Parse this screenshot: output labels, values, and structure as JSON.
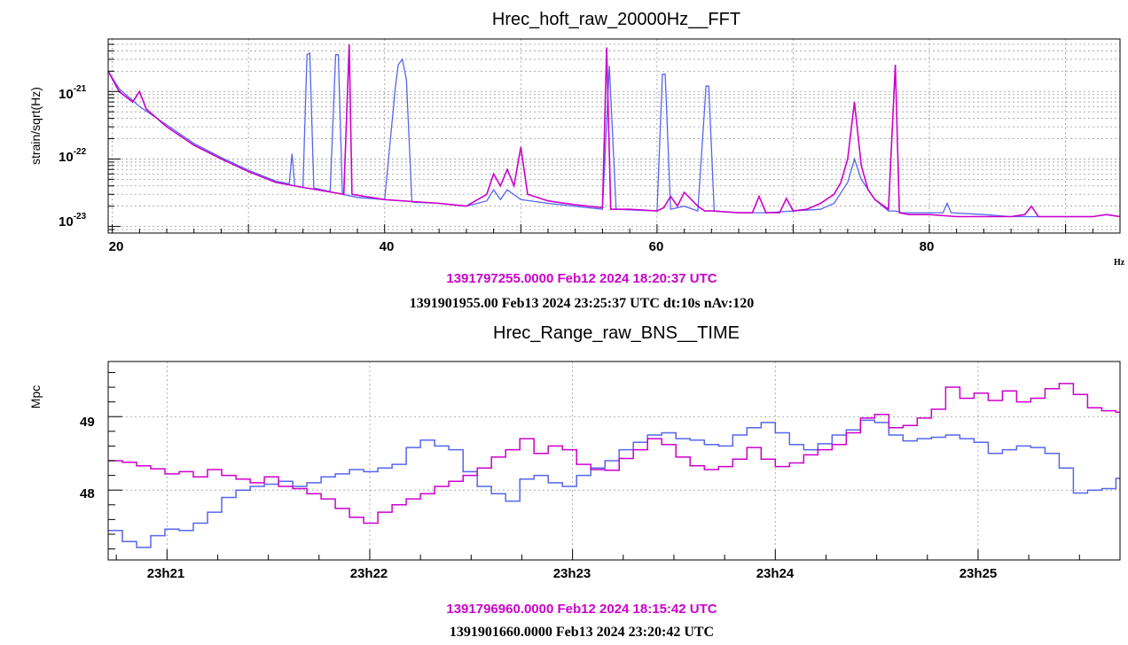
{
  "colors": {
    "magenta": "#cc00cc",
    "blue": "#5566ee",
    "frame": "#000000"
  },
  "chart_data": [
    {
      "type": "line",
      "title": "Hrec_hoft_raw_20000Hz__FFT",
      "xlabel": "Hz",
      "ylabel": "strain/sqrt(Hz)",
      "x_tick_labels": [
        "20",
        "40",
        "60",
        "80"
      ],
      "y_tick_labels": [
        "10-21",
        "10-22",
        "10-23"
      ],
      "y_scale": "log",
      "xlim": [
        19.7,
        94
      ],
      "ylim": [
        8e-24,
        6e-21
      ],
      "grid": true,
      "series": [
        {
          "name": "1391797255.0000 Feb12 2024 18:20:37 UTC",
          "color": "#cc00cc",
          "x": [
            19.7,
            20.5,
            21.5,
            22,
            22.5,
            24,
            26,
            28,
            30,
            32,
            34,
            37,
            37.4,
            37.6,
            40,
            44,
            46,
            47.5,
            48,
            48.5,
            49,
            49.5,
            50,
            50.5,
            52,
            54,
            56,
            56.3,
            56.6,
            58,
            60,
            60.5,
            61,
            61.5,
            62,
            63,
            63.5,
            64,
            66,
            67,
            67.5,
            68,
            69,
            69.5,
            70,
            71,
            72,
            73,
            73.5,
            74,
            74.5,
            75,
            75.5,
            76,
            77,
            77.5,
            77.8,
            78.5,
            80,
            82,
            84,
            86,
            87,
            87.5,
            88,
            90,
            92,
            93,
            94
          ],
          "values": [
            2e-21,
            1e-21,
            7e-22,
            1e-21,
            5.5e-22,
            3e-22,
            1.6e-22,
            1e-22,
            6.5e-23,
            4.5e-23,
            3.8e-23,
            3e-23,
            5e-21,
            3e-23,
            2.5e-23,
            2.2e-23,
            2e-23,
            3e-23,
            6e-23,
            4e-23,
            7e-23,
            4e-23,
            1.5e-22,
            3e-23,
            2.4e-23,
            2.1e-23,
            1.9e-23,
            4.5e-21,
            1.8e-23,
            1.8e-23,
            1.7e-23,
            1.9e-23,
            2.8e-23,
            2e-23,
            3.2e-23,
            2e-23,
            1.7e-23,
            1.7e-23,
            1.6e-23,
            1.6e-23,
            2.8e-23,
            1.6e-23,
            1.6e-23,
            2.6e-23,
            1.7e-23,
            1.8e-23,
            2.2e-23,
            3e-23,
            4.5e-23,
            1e-22,
            7e-22,
            8e-23,
            3.5e-23,
            2.5e-23,
            1.8e-23,
            2.5e-21,
            1.6e-23,
            1.5e-23,
            1.5e-23,
            1.4e-23,
            1.4e-23,
            1.4e-23,
            1.5e-23,
            2e-23,
            1.4e-23,
            1.4e-23,
            1.4e-23,
            1.5e-23,
            1.4e-23
          ]
        },
        {
          "name": "1391901955.00 Feb13 2024 23:25:37 UTC dt:10s nAv:120",
          "color": "#5566ee",
          "x": [
            19.7,
            20.5,
            22,
            24,
            26,
            28,
            30,
            32,
            33,
            33.2,
            33.4,
            34,
            34.3,
            34.5,
            34.8,
            36,
            36.4,
            36.6,
            36.9,
            38,
            40,
            40.8,
            41,
            41.3,
            41.6,
            42,
            44,
            46,
            47.5,
            48,
            48.5,
            49,
            50,
            52,
            56,
            56.5,
            57,
            60,
            60.4,
            60.6,
            61,
            62,
            63,
            63.6,
            63.8,
            64.2,
            66,
            68,
            70,
            72,
            73,
            74,
            74.5,
            75,
            76,
            77,
            77.5,
            78,
            80,
            81,
            81.3,
            81.6,
            84,
            86,
            88,
            90,
            92,
            93,
            94
          ],
          "values": [
            2e-21,
            1.1e-21,
            6e-22,
            3.2e-22,
            1.7e-22,
            1.05e-22,
            6.8e-23,
            4.7e-23,
            4.3e-23,
            1.2e-22,
            4e-23,
            3.8e-23,
            3.5e-21,
            3.7e-21,
            3.7e-23,
            3.3e-23,
            3.5e-21,
            3.5e-21,
            3e-23,
            2.7e-23,
            2.5e-23,
            1.2e-21,
            2.5e-21,
            3e-21,
            1.5e-21,
            2.3e-23,
            2.2e-23,
            2e-23,
            2.4e-23,
            3.5e-23,
            2.5e-23,
            3.5e-23,
            2.5e-23,
            2.2e-23,
            1.8e-23,
            2.4e-21,
            1.8e-23,
            1.7e-23,
            1.8e-21,
            1.8e-21,
            1.8e-23,
            2e-23,
            1.7e-23,
            1.2e-21,
            1.2e-21,
            1.7e-23,
            1.6e-23,
            1.6e-23,
            1.7e-23,
            1.8e-23,
            2.2e-23,
            4.5e-23,
            1e-22,
            5e-23,
            2.5e-23,
            1.7e-23,
            1.7e-23,
            1.6e-23,
            1.6e-23,
            1.6e-23,
            2.2e-23,
            1.6e-23,
            1.5e-23,
            1.4e-23,
            1.4e-23,
            1.4e-23,
            1.4e-23,
            1.5e-23,
            1.4e-23
          ]
        }
      ]
    },
    {
      "type": "line",
      "title": "Hrec_Range_raw_BNS__TIME",
      "xlabel": "",
      "ylabel": "Mpc",
      "x_tick_labels": [
        "23h21",
        "23h22",
        "23h23",
        "23h24",
        "23h25"
      ],
      "y_tick_labels": [
        "48",
        "49"
      ],
      "xlim": [
        20.71,
        25.7
      ],
      "ylim": [
        47.05,
        49.75
      ],
      "grid": true,
      "series": [
        {
          "name": "1391796960.0000 Feb12 2024 18:15:42 UTC",
          "color": "#cc00cc",
          "x": [
            20.71,
            20.78,
            20.85,
            20.92,
            20.99,
            21.06,
            21.13,
            21.2,
            21.27,
            21.34,
            21.41,
            21.48,
            21.55,
            21.62,
            21.69,
            21.76,
            21.83,
            21.9,
            21.97,
            22.04,
            22.11,
            22.18,
            22.25,
            22.32,
            22.39,
            22.46,
            22.53,
            22.6,
            22.67,
            22.74,
            22.81,
            22.88,
            22.95,
            23.02,
            23.09,
            23.16,
            23.23,
            23.3,
            23.37,
            23.44,
            23.51,
            23.58,
            23.65,
            23.72,
            23.79,
            23.86,
            23.93,
            24.0,
            24.07,
            24.14,
            24.21,
            24.28,
            24.35,
            24.42,
            24.49,
            24.56,
            24.63,
            24.7,
            24.77,
            24.84,
            24.91,
            24.98,
            25.05,
            25.12,
            25.19,
            25.26,
            25.33,
            25.4,
            25.47,
            25.54,
            25.61,
            25.68
          ],
          "values": [
            48.4,
            48.38,
            48.33,
            48.29,
            48.22,
            48.25,
            48.18,
            48.28,
            48.2,
            48.15,
            48.1,
            48.18,
            48.05,
            48.02,
            47.95,
            47.88,
            47.75,
            47.63,
            47.55,
            47.7,
            47.8,
            47.88,
            47.95,
            48.05,
            48.12,
            48.2,
            48.3,
            48.45,
            48.55,
            48.7,
            48.5,
            48.6,
            48.55,
            48.35,
            48.28,
            48.27,
            48.43,
            48.55,
            48.7,
            48.62,
            48.45,
            48.33,
            48.28,
            48.32,
            48.42,
            48.58,
            48.42,
            48.32,
            48.37,
            48.48,
            48.55,
            48.62,
            48.78,
            48.98,
            49.03,
            48.85,
            48.88,
            48.98,
            49.1,
            49.4,
            49.25,
            49.32,
            49.22,
            49.35,
            49.2,
            49.25,
            49.38,
            49.45,
            49.3,
            49.12,
            49.08,
            49.06
          ]
        },
        {
          "name": "1391901660.0000 Feb13 2024 23:20:42 UTC",
          "color": "#5566ee",
          "x": [
            20.71,
            20.78,
            20.85,
            20.92,
            20.99,
            21.06,
            21.13,
            21.2,
            21.27,
            21.34,
            21.41,
            21.48,
            21.55,
            21.62,
            21.69,
            21.76,
            21.83,
            21.9,
            21.97,
            22.04,
            22.11,
            22.18,
            22.25,
            22.32,
            22.39,
            22.46,
            22.53,
            22.6,
            22.67,
            22.74,
            22.81,
            22.88,
            22.95,
            23.02,
            23.09,
            23.16,
            23.23,
            23.3,
            23.37,
            23.44,
            23.51,
            23.58,
            23.65,
            23.72,
            23.79,
            23.86,
            23.93,
            24.0,
            24.07,
            24.14,
            24.21,
            24.28,
            24.35,
            24.42,
            24.49,
            24.56,
            24.63,
            24.7,
            24.77,
            24.84,
            24.91,
            24.98,
            25.05,
            25.12,
            25.19,
            25.26,
            25.33,
            25.4,
            25.47,
            25.54,
            25.61,
            25.68
          ],
          "values": [
            47.45,
            47.3,
            47.22,
            47.38,
            47.47,
            47.45,
            47.55,
            47.7,
            47.9,
            48.0,
            48.05,
            48.08,
            48.12,
            48.05,
            48.1,
            48.18,
            48.22,
            48.28,
            48.25,
            48.3,
            48.35,
            48.58,
            48.68,
            48.6,
            48.55,
            48.25,
            48.05,
            47.95,
            47.85,
            48.15,
            48.2,
            48.1,
            48.05,
            48.2,
            48.3,
            48.4,
            48.55,
            48.65,
            48.75,
            48.78,
            48.7,
            48.68,
            48.62,
            48.6,
            48.75,
            48.85,
            48.92,
            48.78,
            48.62,
            48.55,
            48.63,
            48.75,
            48.82,
            48.95,
            48.92,
            48.75,
            48.67,
            48.7,
            48.72,
            48.75,
            48.7,
            48.65,
            48.5,
            48.55,
            48.6,
            48.58,
            48.5,
            48.3,
            47.96,
            48.0,
            48.02,
            48.16
          ]
        }
      ]
    }
  ]
}
